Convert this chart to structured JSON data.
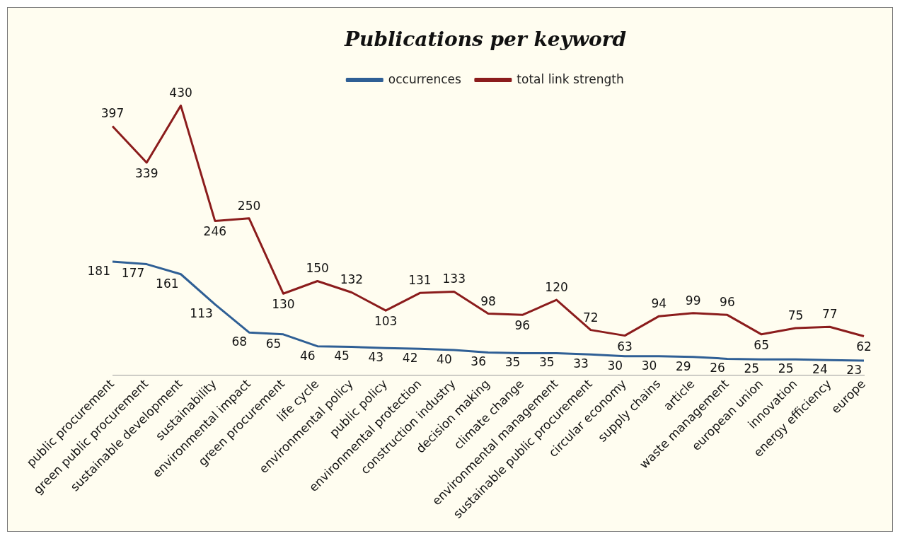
{
  "chart_data": {
    "type": "line",
    "title": "Publications per keyword",
    "categories": [
      "public procurement",
      "green public procurement",
      "sustainable development",
      "sustainability",
      "environmental impact",
      "green procurement",
      "life cycle",
      "environmental policy",
      "public policy",
      "environmental protection",
      "construction industry",
      "decision making",
      "climate change",
      "environmental management",
      "sustainable public procurement",
      "circular economy",
      "supply chains",
      "article",
      "waste management",
      "european union",
      "innovation",
      "energy efficiency",
      "europe"
    ],
    "series": [
      {
        "name": "occurrences",
        "color": "#2f5f95",
        "values": [
          181,
          177,
          161,
          113,
          68,
          65,
          46,
          45,
          43,
          42,
          40,
          36,
          35,
          35,
          33,
          30,
          30,
          29,
          26,
          25,
          25,
          24,
          23
        ]
      },
      {
        "name": "total link strength",
        "color": "#8b1c1c",
        "values": [
          397,
          339,
          430,
          246,
          250,
          130,
          150,
          132,
          103,
          131,
          133,
          98,
          96,
          120,
          72,
          63,
          94,
          99,
          96,
          65,
          75,
          77,
          62
        ]
      }
    ],
    "tick_labels": "x",
    "data_labels": true,
    "legend": "top",
    "grid": false,
    "marker": "none",
    "line_style": "solid"
  }
}
